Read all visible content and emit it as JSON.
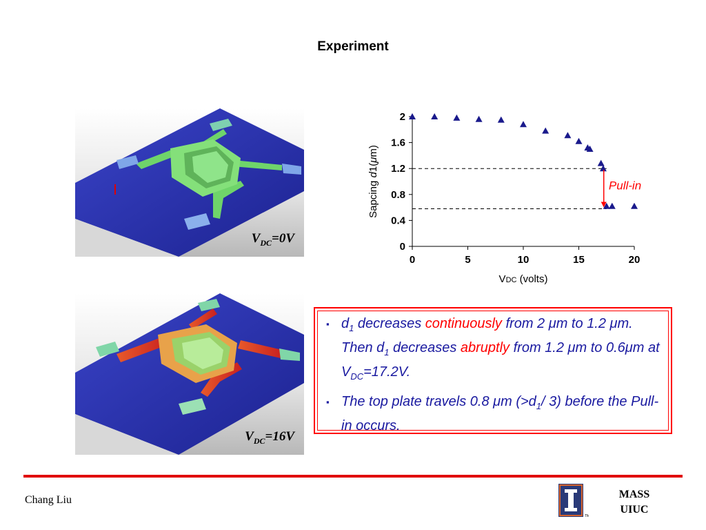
{
  "slide": {
    "title": "Experiment",
    "author": "Chang Liu",
    "lab_line1": "MASS",
    "lab_line2": "UIUC",
    "logo_tm": "TM"
  },
  "images": {
    "top": {
      "label_main": "V",
      "label_sub": "DC",
      "label_rest": "=0V"
    },
    "bottom": {
      "label_main": "V",
      "label_sub": "DC",
      "label_rest": "=16V"
    }
  },
  "notes": {
    "bullet_char": "▪",
    "b1": {
      "p1": "d",
      "p1_sub": "1",
      "p2": " decreases ",
      "p3_red": "continuously",
      "p4": " from 2 ",
      "mu1": "μ",
      "p5": "m to 1.2 ",
      "mu2": "μ",
      "p6": "m.  Then d",
      "p6_sub": "1",
      "p7": " decreases ",
      "p8_red": "abruptly",
      "p9": " from 1.2 ",
      "mu3": "μ",
      "p10": "m to 0.6",
      "mu4": "μ",
      "p11": "m at V",
      "p11_sub": "DC",
      "p12": "=17.2V."
    },
    "b2": {
      "p1": "The top plate travels 0.8 ",
      "mu1": "μ",
      "p2": "m (>d",
      "p2_sub": "1",
      "p3": "/ 3) before the Pull-in occurs."
    }
  },
  "chart_data": {
    "type": "scatter",
    "x": [
      0,
      2,
      4,
      6,
      8,
      10,
      12,
      14,
      15,
      15.8,
      16,
      17,
      17.2,
      17.5,
      18,
      20
    ],
    "y": [
      2.0,
      2.0,
      1.98,
      1.96,
      1.95,
      1.88,
      1.78,
      1.71,
      1.62,
      1.52,
      1.5,
      1.28,
      1.2,
      0.62,
      0.62,
      0.62
    ],
    "xlabel_main": "V",
    "xlabel_sub": "DC",
    "xlabel_rest": " (volts)",
    "ylabel_pre": "Sapcing ",
    "ylabel_d": "d",
    "ylabel_post": "1(",
    "ylabel_mu": "μ",
    "ylabel_end": "m)",
    "xlim": [
      0,
      20
    ],
    "ylim": [
      0,
      2
    ],
    "xticks": [
      "0",
      "5",
      "10",
      "15",
      "20"
    ],
    "yticks": [
      "0",
      "0.4",
      "0.8",
      "1.2",
      "1.6",
      "2"
    ],
    "reference_lines": [
      1.2,
      0.58
    ],
    "annotation": "Pull-in",
    "grid": false,
    "marker_color": "#1a1a8c",
    "annotation_color": "#ff0000"
  }
}
